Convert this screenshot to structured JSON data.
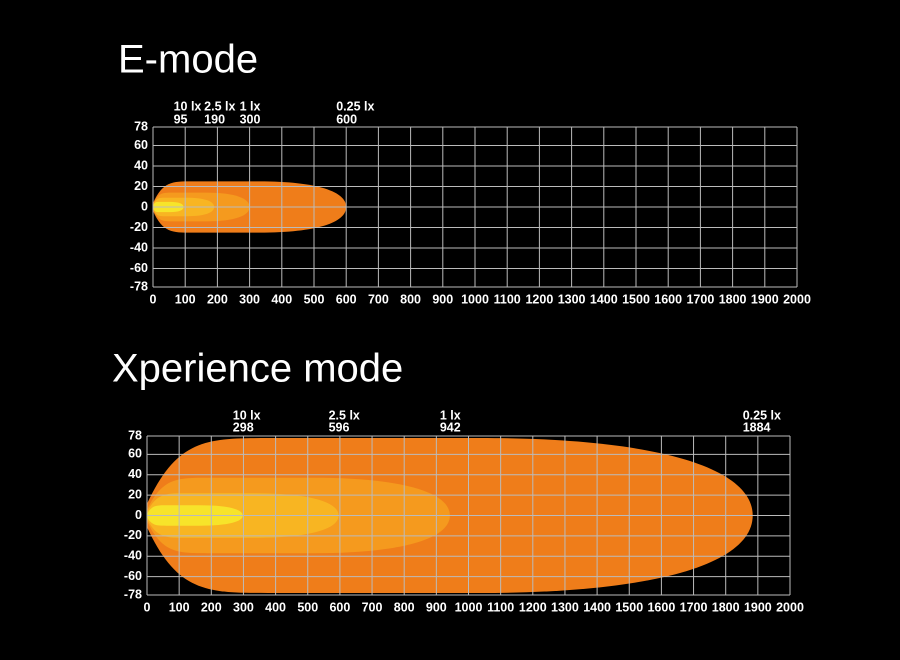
{
  "chart_data": [
    {
      "type": "isolux",
      "title": "E-mode",
      "xlim": [
        0,
        2000
      ],
      "xticks": [
        0,
        100,
        200,
        300,
        400,
        500,
        600,
        700,
        800,
        900,
        1000,
        1100,
        1200,
        1300,
        1400,
        1500,
        1600,
        1700,
        1800,
        1900,
        2000
      ],
      "ylim": [
        -78,
        78
      ],
      "yticks": [
        78,
        60,
        40,
        20,
        0,
        -20,
        -40,
        -60,
        -78
      ],
      "grid": true,
      "series": [
        {
          "name": "10 lx",
          "value": 95,
          "half_width": 5,
          "color": "#f7e42a"
        },
        {
          "name": "2.5 lx",
          "value": 190,
          "half_width": 9,
          "color": "#f8b522"
        },
        {
          "name": "1 lx",
          "value": 300,
          "half_width": 14,
          "color": "#f59a1e"
        },
        {
          "name": "0.25 lx",
          "value": 600,
          "half_width": 25,
          "color": "#ef7d1a"
        }
      ]
    },
    {
      "type": "isolux",
      "title": "Xperience mode",
      "xlim": [
        0,
        2000
      ],
      "xticks": [
        0,
        100,
        200,
        300,
        400,
        500,
        600,
        700,
        800,
        900,
        1000,
        1100,
        1200,
        1300,
        1400,
        1500,
        1600,
        1700,
        1800,
        1900,
        2000
      ],
      "ylim": [
        -78,
        78
      ],
      "yticks": [
        78,
        60,
        40,
        20,
        0,
        -20,
        -40,
        -60,
        -78
      ],
      "grid": true,
      "series": [
        {
          "name": "10 lx",
          "value": 298,
          "half_width": 10,
          "color": "#f7e42a"
        },
        {
          "name": "2.5 lx",
          "value": 596,
          "half_width": 22,
          "color": "#f8b522"
        },
        {
          "name": "1 lx",
          "value": 942,
          "half_width": 37,
          "color": "#f59a1e"
        },
        {
          "name": "0.25 lx",
          "value": 1884,
          "half_width": 76,
          "color": "#ef7d1a"
        }
      ]
    }
  ]
}
